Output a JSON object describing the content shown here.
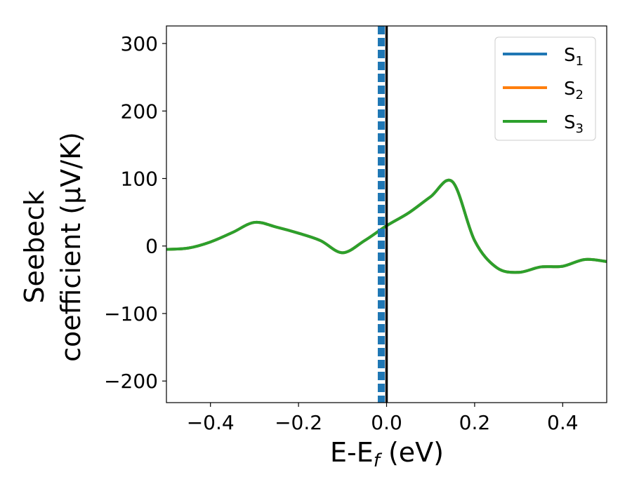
{
  "chart_data": {
    "type": "line",
    "xlabel": {
      "main": "E-E",
      "sub": "f",
      "unit": " (eV)"
    },
    "ylabel": {
      "line1": "Seebeck",
      "line2": "coefficient  (μV/K)"
    },
    "xlim": [
      -0.5,
      0.5
    ],
    "ylim": [
      -232,
      326
    ],
    "x_ticks": [
      -0.4,
      -0.2,
      0.0,
      0.2,
      0.4
    ],
    "x_tick_labels": [
      "−0.4",
      "−0.2",
      "0.0",
      "0.2",
      "0.4"
    ],
    "y_ticks": [
      -200,
      -100,
      0,
      100,
      200,
      300
    ],
    "y_tick_labels": [
      "−200",
      "−100",
      "0",
      "100",
      "200",
      "300"
    ],
    "grid": false,
    "legend_position": "top-right",
    "series": [
      {
        "name": "S",
        "sub": "1",
        "color": "#1f77b4",
        "x": [
          -0.5,
          -0.45,
          -0.4,
          -0.35,
          -0.3,
          -0.25,
          -0.2,
          -0.15,
          -0.1,
          -0.05,
          0.0,
          0.05,
          0.1,
          0.15,
          0.2,
          0.25,
          0.3,
          0.35,
          0.4,
          0.45,
          0.5
        ],
        "y": [
          -5,
          -3,
          6,
          20,
          35,
          28,
          19,
          8,
          -10,
          8,
          30,
          49,
          73,
          95,
          8,
          -32,
          -39,
          -31,
          -30,
          -20,
          -23
        ]
      },
      {
        "name": "S",
        "sub": "2",
        "color": "#ff7f0e",
        "x": [
          -0.5,
          -0.45,
          -0.4,
          -0.35,
          -0.3,
          -0.25,
          -0.2,
          -0.15,
          -0.1,
          -0.05,
          0.0,
          0.05,
          0.1,
          0.15,
          0.2,
          0.25,
          0.3,
          0.35,
          0.4,
          0.45,
          0.5
        ],
        "y": [
          -5,
          -3,
          6,
          20,
          35,
          28,
          19,
          8,
          -10,
          8,
          30,
          49,
          73,
          95,
          8,
          -32,
          -39,
          -31,
          -30,
          -20,
          -23
        ]
      },
      {
        "name": "S",
        "sub": "3",
        "color": "#2ca02c",
        "x": [
          -0.5,
          -0.45,
          -0.4,
          -0.35,
          -0.3,
          -0.25,
          -0.2,
          -0.15,
          -0.1,
          -0.05,
          0.0,
          0.05,
          0.1,
          0.15,
          0.2,
          0.25,
          0.3,
          0.35,
          0.4,
          0.45,
          0.5
        ],
        "y": [
          -5,
          -3,
          6,
          20,
          35,
          28,
          19,
          8,
          -10,
          8,
          30,
          49,
          73,
          95,
          8,
          -32,
          -39,
          -31,
          -30,
          -20,
          -23
        ]
      }
    ],
    "vertical_lines": [
      {
        "x": -0.012,
        "style": "dashed",
        "color": "#1f77b4"
      },
      {
        "x": 0.0,
        "style": "solid",
        "color": "#000000"
      }
    ]
  }
}
